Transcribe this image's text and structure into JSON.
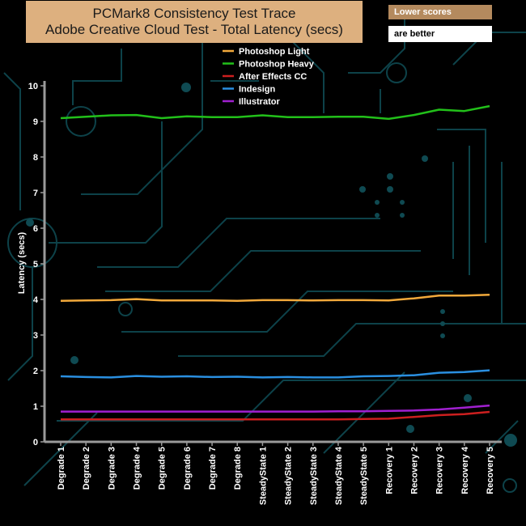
{
  "notes": {
    "line1": "Lower scores",
    "line2": "are better"
  },
  "chart_data": {
    "type": "line",
    "title": "PCMark8 Consistency Test Trace",
    "subtitle": "Adobe Creative Cloud Test -  Total Latency (secs)",
    "xlabel": "",
    "ylabel": "Latency (secs)",
    "ylim": [
      0,
      10
    ],
    "yticks": [
      "0",
      "1",
      "2",
      "3",
      "4",
      "5",
      "6",
      "7",
      "8",
      "9",
      "10"
    ],
    "grid": false,
    "legend_position": "top",
    "categories": [
      "Degrade 1",
      "Degrade 2",
      "Degrade 3",
      "Degrade 4",
      "Degrade 5",
      "Degrade 6",
      "Degrade 7",
      "Degrade 8",
      "SteadyState 1",
      "SteadyState 2",
      "SteadyState 3",
      "SteadyState 4",
      "SteadyState 5",
      "Recovery 1",
      "Recovery 2",
      "Recovery 3",
      "Recovery 4",
      "Recovery 5"
    ],
    "series": [
      {
        "name": "Photoshop Light",
        "color": "#f2a93b",
        "values": [
          3.96,
          3.97,
          3.98,
          4.01,
          3.97,
          3.97,
          3.97,
          3.96,
          3.98,
          3.98,
          3.97,
          3.98,
          3.98,
          3.97,
          4.03,
          4.11,
          4.11,
          4.13
        ]
      },
      {
        "name": " Photoshop Heavy",
        "color": "#22c01a",
        "values": [
          9.09,
          9.13,
          9.17,
          9.18,
          9.09,
          9.14,
          9.12,
          9.12,
          9.17,
          9.12,
          9.12,
          9.13,
          9.13,
          9.07,
          9.18,
          9.33,
          9.29,
          9.43
        ]
      },
      {
        "name": "After Effects CC",
        "color": "#cc1f1f",
        "values": [
          0.63,
          0.63,
          0.63,
          0.63,
          0.63,
          0.63,
          0.63,
          0.63,
          0.63,
          0.63,
          0.63,
          0.63,
          0.64,
          0.65,
          0.7,
          0.75,
          0.78,
          0.84
        ]
      },
      {
        "name": "Indesign",
        "color": "#2a8fe0",
        "values": [
          1.84,
          1.82,
          1.81,
          1.85,
          1.83,
          1.84,
          1.82,
          1.83,
          1.81,
          1.82,
          1.81,
          1.81,
          1.84,
          1.85,
          1.87,
          1.94,
          1.96,
          2.01
        ]
      },
      {
        "name": "Illustrator",
        "color": "#a020d0",
        "values": [
          0.85,
          0.85,
          0.85,
          0.85,
          0.85,
          0.85,
          0.85,
          0.85,
          0.85,
          0.85,
          0.85,
          0.86,
          0.86,
          0.87,
          0.88,
          0.91,
          0.96,
          1.02
        ]
      }
    ]
  }
}
